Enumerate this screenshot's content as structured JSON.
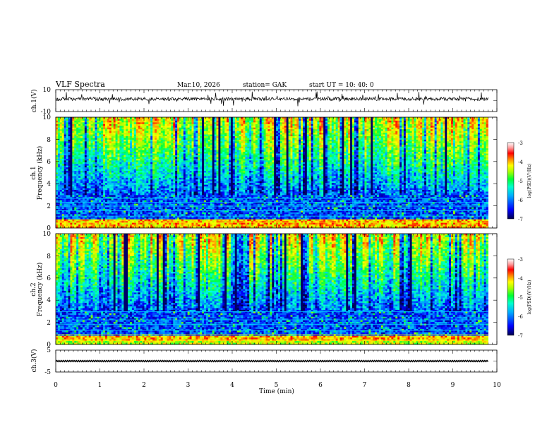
{
  "header": {
    "title": "VLF  Spectra",
    "date": "Mar.10, 2026",
    "station": "station= GAK",
    "start_ut": "start  UT  =   10: 40: 0"
  },
  "colors": {
    "waveform": "#000000",
    "colormap": [
      "#000066",
      "#0000ff",
      "#00aaff",
      "#00ffff",
      "#00ff66",
      "#aaff00",
      "#ffff00",
      "#ff8800",
      "#ff0000",
      "#ffffff"
    ]
  },
  "chart_data": [
    {
      "type": "line",
      "panel": "ch1-waveform",
      "ylabel": "ch.1(V)",
      "ylim": [
        -10,
        10
      ],
      "yticks": [
        "10",
        "-10"
      ],
      "x_range_min": [
        0,
        9.8
      ],
      "baseline_v": 1.5
    },
    {
      "type": "heatmap",
      "panel": "ch1-spectrogram",
      "ylabel_channel": "ch.1",
      "ylabel": "Frequency  (kHz)",
      "ylim": [
        0,
        10
      ],
      "yticks": [
        "0",
        "2",
        "4",
        "6",
        "8",
        "10"
      ],
      "x_range_min": [
        0,
        9.8
      ],
      "colorbar": {
        "label": "log(PSD)(V²/Hz)",
        "range": [
          -7,
          -3
        ],
        "ticks": [
          "-3",
          "-4",
          "-5",
          "-6",
          "-7"
        ]
      }
    },
    {
      "type": "heatmap",
      "panel": "ch2-spectrogram",
      "ylabel_channel": "ch.2",
      "ylabel": "Frequency  (kHz)",
      "ylim": [
        0,
        10
      ],
      "yticks": [
        "0",
        "2",
        "4",
        "6",
        "8",
        "10"
      ],
      "x_range_min": [
        0,
        9.8
      ],
      "colorbar": {
        "label": "log(PSD)(V²/Hz)",
        "range": [
          -7,
          -3
        ],
        "ticks": [
          "-3",
          "-4",
          "-5",
          "-6",
          "-7"
        ]
      }
    },
    {
      "type": "line",
      "panel": "ch3-waveform",
      "ylabel": "ch.3(V)",
      "ylim": [
        -5,
        5
      ],
      "yticks": [
        "5",
        "-5"
      ],
      "x_range_min": [
        0,
        9.8
      ],
      "baseline_v": 0
    }
  ],
  "x_axis": {
    "label": "Time  (min)",
    "range": [
      0,
      10
    ],
    "ticks": [
      "0",
      "1",
      "2",
      "3",
      "4",
      "5",
      "6",
      "7",
      "8",
      "9",
      "10"
    ]
  }
}
